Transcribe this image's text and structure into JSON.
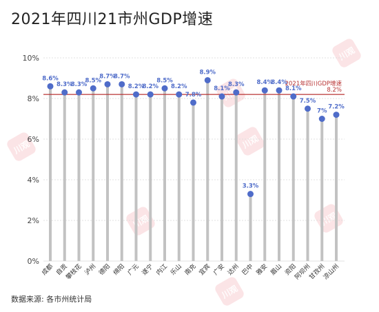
{
  "title": "2021年四川21市州GDP增速",
  "source": "数据来源: 各市州统计局",
  "colors": {
    "stem": "#c2c2c2",
    "dot": "#4f6cc9",
    "label": "#4f6cc9",
    "refline": "#b83333",
    "grid": "#d9d9d9"
  },
  "watermark_text": "川观",
  "chart_data": {
    "type": "lollipop",
    "categories": [
      "成都",
      "自贡",
      "攀枝花",
      "泸州",
      "德阳",
      "绵阳",
      "广元",
      "遂宁",
      "内江",
      "乐山",
      "南充",
      "宜宾",
      "广安",
      "达州",
      "巴中",
      "雅安",
      "眉山",
      "资阳",
      "阿坝州",
      "甘孜州",
      "凉山州"
    ],
    "values": [
      8.6,
      8.3,
      8.3,
      8.5,
      8.7,
      8.7,
      8.2,
      8.2,
      8.5,
      8.2,
      7.8,
      8.9,
      8.1,
      8.3,
      3.3,
      8.4,
      8.4,
      8.1,
      7.5,
      7.0,
      7.2
    ],
    "value_labels": [
      "8.6%",
      "8.3%",
      "8.3%",
      "8.5%",
      "8.7%",
      "8.7%",
      "8.2%",
      "8.2%",
      "8.5%",
      "8.2%",
      "7.8%",
      "8.9%",
      "8.1%",
      "8.3%",
      "3.3%",
      "8.4%",
      "8.4%",
      "8.1%",
      "7.5%",
      "7%",
      "7.2%"
    ],
    "yticks": [
      "0%",
      "2%",
      "4%",
      "6%",
      "8%",
      "10%"
    ],
    "ylim": [
      0,
      10
    ],
    "reference_line": {
      "value": 8.2,
      "label": "2021年四川GDP增速",
      "value_label": "8.2%"
    },
    "xlabel": "",
    "ylabel": "",
    "grid": true
  }
}
